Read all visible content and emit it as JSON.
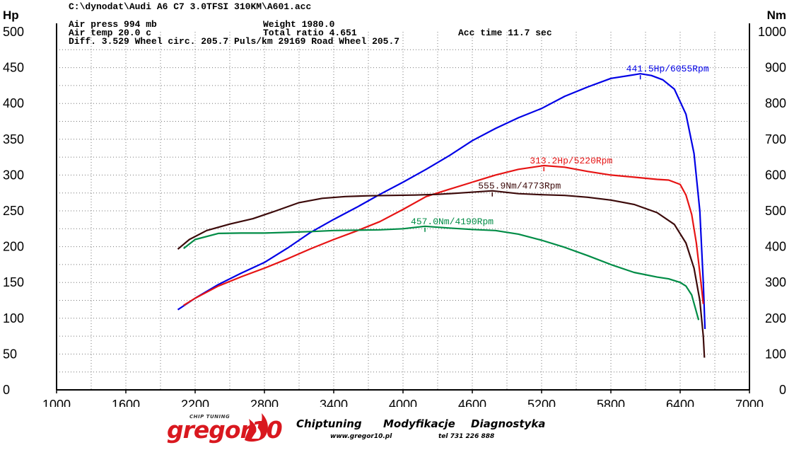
{
  "header": {
    "file": "C:\\dynodat\\Audi A6 C7 3.0TFSI 310KM\\A601.acc",
    "rows": [
      [
        {
          "t": "Air press   994 mb",
          "c": 0
        },
        {
          "t": "Weight   1980.0",
          "c": 1
        }
      ],
      [
        {
          "t": "Air temp   20.0 c",
          "c": 0
        },
        {
          "t": "Total ratio 4.651",
          "c": 1
        },
        {
          "t": "Acc time   11.7 sec",
          "c": 2
        }
      ],
      [
        {
          "t": "Diff.     3.529   Wheel circ. 205.7   Puls/km   29169   Road Wheel 205.7",
          "c": 0
        }
      ]
    ]
  },
  "chart_data": {
    "type": "line",
    "xlim": [
      1000,
      7000
    ],
    "x_ticks": [
      "1000",
      "1600",
      "2200",
      "2800",
      "3400",
      "4000",
      "4600",
      "5200",
      "5800",
      "6400",
      "7000"
    ],
    "ylim_left": [
      0,
      500
    ],
    "y_ticks_left": [
      "0",
      "50",
      "100",
      "150",
      "200",
      "250",
      "300",
      "350",
      "400",
      "450",
      "500"
    ],
    "ylabel_left": "Hp",
    "ylim_right": [
      0,
      1000
    ],
    "y_ticks_right": [
      "0",
      "100",
      "200",
      "300",
      "400",
      "500",
      "600",
      "700",
      "800",
      "900",
      "1000"
    ],
    "ylabel_right": "Nm",
    "grid": true,
    "series": [
      {
        "axis": "left",
        "color": "#0000e6",
        "x": [
          2050,
          2200,
          2400,
          2600,
          2800,
          3000,
          3200,
          3400,
          3600,
          3800,
          4000,
          4200,
          4400,
          4600,
          4800,
          5000,
          5200,
          5400,
          5600,
          5800,
          6000,
          6055,
          6150,
          6250,
          6350,
          6450,
          6520,
          6570,
          6600,
          6615
        ],
        "y": [
          112,
          128,
          147,
          163,
          178,
          198,
          220,
          238,
          255,
          273,
          290,
          308,
          327,
          348,
          365,
          380,
          393,
          410,
          423,
          435,
          440,
          441.5,
          439,
          433,
          420,
          385,
          330,
          250,
          150,
          85
        ],
        "peak_label": "441.5Hp/6055Rpm",
        "peak": [
          6055,
          441.5
        ]
      },
      {
        "axis": "left",
        "color": "#e61414",
        "x": [
          2100,
          2200,
          2400,
          2600,
          2800,
          3000,
          3200,
          3400,
          3600,
          3800,
          4000,
          4200,
          4400,
          4600,
          4800,
          5000,
          5220,
          5400,
          5600,
          5800,
          6000,
          6200,
          6300,
          6400,
          6450,
          6500,
          6540,
          6580,
          6600
        ],
        "y": [
          118,
          128,
          145,
          158,
          170,
          183,
          197,
          210,
          222,
          235,
          252,
          270,
          280,
          290,
          300,
          308,
          313.2,
          311,
          305,
          300,
          297,
          294,
          293,
          287,
          272,
          245,
          205,
          150,
          120
        ],
        "peak_label": "313.2Hp/5220Rpm",
        "peak": [
          5220,
          313.2
        ]
      },
      {
        "axis": "right",
        "color": "#3c0a0a",
        "x": [
          2050,
          2150,
          2300,
          2500,
          2700,
          2900,
          3100,
          3300,
          3500,
          3700,
          3900,
          4100,
          4300,
          4500,
          4773,
          5000,
          5200,
          5400,
          5600,
          5800,
          6000,
          6200,
          6350,
          6450,
          6520,
          6570,
          6600,
          6610
        ],
        "y": [
          393,
          420,
          445,
          463,
          478,
          500,
          523,
          535,
          540,
          542,
          543,
          544,
          546,
          550,
          555.9,
          548,
          545,
          543,
          538,
          530,
          518,
          495,
          462,
          410,
          340,
          250,
          150,
          90
        ],
        "peak_label": "555.9Nm/4773Rpm",
        "peak": [
          4773,
          555.9
        ]
      },
      {
        "axis": "right",
        "color": "#008c46",
        "x": [
          2100,
          2200,
          2400,
          2600,
          2800,
          3000,
          3200,
          3400,
          3600,
          3800,
          4000,
          4190,
          4400,
          4600,
          4800,
          5000,
          5200,
          5400,
          5600,
          5800,
          6000,
          6200,
          6300,
          6400,
          6450,
          6500,
          6530,
          6560
        ],
        "y": [
          395,
          420,
          437,
          438,
          438,
          440,
          442,
          445,
          446,
          447,
          450,
          457.0,
          452,
          448,
          445,
          435,
          418,
          398,
          375,
          350,
          328,
          315,
          310,
          300,
          290,
          265,
          230,
          195
        ],
        "peak_label": "457.0Nm/4190Rpm",
        "peak": [
          4190,
          457.0
        ]
      }
    ]
  },
  "footer": {
    "logo_small": "CHIP TUNING",
    "logo": "gregor10",
    "slogan_1": "Chiptuning",
    "slogan_2": "Modyfikacje",
    "slogan_3": "Diagnostyka",
    "website": "www.gregor10.pl",
    "phone": "tel 731 226 888"
  }
}
